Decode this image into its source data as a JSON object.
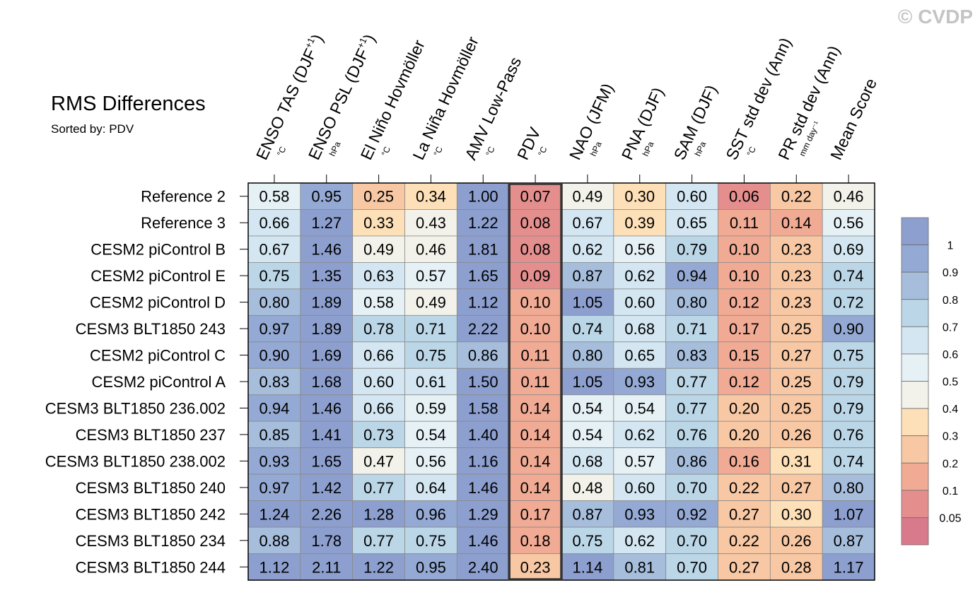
{
  "watermark": "© CVDP",
  "chart_data": {
    "type": "heatmap",
    "title": "RMS Differences",
    "subtitle": "Sorted by: PDV",
    "highlight_column": "PDV",
    "columns": [
      {
        "label": "ENSO TAS (DJF",
        "sup": "+1",
        "suffix": ")",
        "unit": "°C"
      },
      {
        "label": "ENSO PSL (DJF",
        "sup": "+1",
        "suffix": ")",
        "unit": "hPa"
      },
      {
        "label": "El Niño Hovmöller",
        "sup": "",
        "suffix": "",
        "unit": "°C"
      },
      {
        "label": "La Niña Hovmöller",
        "sup": "",
        "suffix": "",
        "unit": "°C"
      },
      {
        "label": "AMV Low-Pass",
        "sup": "",
        "suffix": "",
        "unit": "°C"
      },
      {
        "label": "PDV",
        "sup": "",
        "suffix": "",
        "unit": "°C"
      },
      {
        "label": "NAO (JFM)",
        "sup": "",
        "suffix": "",
        "unit": "hPa"
      },
      {
        "label": "PNA (DJF)",
        "sup": "",
        "suffix": "",
        "unit": "hPa"
      },
      {
        "label": "SAM (DJF)",
        "sup": "",
        "suffix": "",
        "unit": "hPa"
      },
      {
        "label": "SST std dev (Ann)",
        "sup": "",
        "suffix": "",
        "unit": "°C"
      },
      {
        "label": "PR std dev (Ann)",
        "sup": "",
        "suffix": "",
        "unit": "mm day⁻¹"
      },
      {
        "label": "Mean Score",
        "sup": "",
        "suffix": "",
        "unit": ""
      }
    ],
    "rows": [
      {
        "label": "Reference 2",
        "values": [
          "0.58",
          "0.95",
          "0.25",
          "0.34",
          "1.00",
          "0.07",
          "0.49",
          "0.30",
          "0.60",
          "0.06",
          "0.22",
          "0.46"
        ]
      },
      {
        "label": "Reference 3",
        "values": [
          "0.66",
          "1.27",
          "0.33",
          "0.43",
          "1.22",
          "0.08",
          "0.67",
          "0.39",
          "0.65",
          "0.11",
          "0.14",
          "0.56"
        ]
      },
      {
        "label": "CESM2 piControl B",
        "values": [
          "0.67",
          "1.46",
          "0.49",
          "0.46",
          "1.81",
          "0.08",
          "0.62",
          "0.56",
          "0.79",
          "0.10",
          "0.23",
          "0.69"
        ]
      },
      {
        "label": "CESM2 piControl E",
        "values": [
          "0.75",
          "1.35",
          "0.63",
          "0.57",
          "1.65",
          "0.09",
          "0.87",
          "0.62",
          "0.94",
          "0.10",
          "0.23",
          "0.74"
        ]
      },
      {
        "label": "CESM2 piControl D",
        "values": [
          "0.80",
          "1.89",
          "0.58",
          "0.49",
          "1.12",
          "0.10",
          "1.05",
          "0.60",
          "0.80",
          "0.12",
          "0.23",
          "0.72"
        ]
      },
      {
        "label": "CESM3 BLT1850 243",
        "values": [
          "0.97",
          "1.89",
          "0.78",
          "0.71",
          "2.22",
          "0.10",
          "0.74",
          "0.68",
          "0.71",
          "0.17",
          "0.25",
          "0.90"
        ]
      },
      {
        "label": "CESM2 piControl C",
        "values": [
          "0.90",
          "1.69",
          "0.66",
          "0.75",
          "0.86",
          "0.11",
          "0.80",
          "0.65",
          "0.83",
          "0.15",
          "0.27",
          "0.75"
        ]
      },
      {
        "label": "CESM2 piControl A",
        "values": [
          "0.83",
          "1.68",
          "0.60",
          "0.61",
          "1.50",
          "0.11",
          "1.05",
          "0.93",
          "0.77",
          "0.12",
          "0.25",
          "0.79"
        ]
      },
      {
        "label": "CESM3 BLT1850 236.002",
        "values": [
          "0.94",
          "1.46",
          "0.66",
          "0.59",
          "1.58",
          "0.14",
          "0.54",
          "0.54",
          "0.77",
          "0.20",
          "0.25",
          "0.79"
        ]
      },
      {
        "label": "CESM3 BLT1850 237",
        "values": [
          "0.85",
          "1.41",
          "0.73",
          "0.54",
          "1.40",
          "0.14",
          "0.54",
          "0.62",
          "0.76",
          "0.20",
          "0.26",
          "0.76"
        ]
      },
      {
        "label": "CESM3 BLT1850 238.002",
        "values": [
          "0.93",
          "1.65",
          "0.47",
          "0.56",
          "1.16",
          "0.14",
          "0.68",
          "0.57",
          "0.86",
          "0.16",
          "0.31",
          "0.74"
        ]
      },
      {
        "label": "CESM3 BLT1850 240",
        "values": [
          "0.97",
          "1.42",
          "0.77",
          "0.64",
          "1.46",
          "0.14",
          "0.48",
          "0.60",
          "0.70",
          "0.22",
          "0.27",
          "0.80"
        ]
      },
      {
        "label": "CESM3 BLT1850 242",
        "values": [
          "1.24",
          "2.26",
          "1.28",
          "0.96",
          "1.29",
          "0.17",
          "0.87",
          "0.93",
          "0.92",
          "0.27",
          "0.30",
          "1.07"
        ]
      },
      {
        "label": "CESM3 BLT1850 234",
        "values": [
          "0.88",
          "1.78",
          "0.77",
          "0.75",
          "1.46",
          "0.18",
          "0.75",
          "0.62",
          "0.70",
          "0.22",
          "0.26",
          "0.87"
        ]
      },
      {
        "label": "CESM3 BLT1850 244",
        "values": [
          "1.12",
          "2.11",
          "1.22",
          "0.95",
          "2.40",
          "0.23",
          "1.14",
          "0.81",
          "0.70",
          "0.27",
          "0.28",
          "1.17"
        ]
      }
    ],
    "colorbar": {
      "ticks": [
        "1",
        "0.9",
        "0.8",
        "0.7",
        "0.6",
        "0.5",
        "0.4",
        "0.3",
        "0.2",
        "0.1",
        "0.05"
      ],
      "thresholds": [
        0.05,
        0.1,
        0.2,
        0.3,
        0.4,
        0.5,
        0.6,
        0.7,
        0.8,
        0.9,
        1.0
      ],
      "colors": [
        "#d97a8c",
        "#e58e8e",
        "#f1ab95",
        "#f8c8a4",
        "#fde0b8",
        "#f2f2ea",
        "#e6f1f6",
        "#d3e6f1",
        "#bbd6e7",
        "#a6bedc",
        "#94a9d3",
        "#8c9fcf"
      ]
    }
  }
}
